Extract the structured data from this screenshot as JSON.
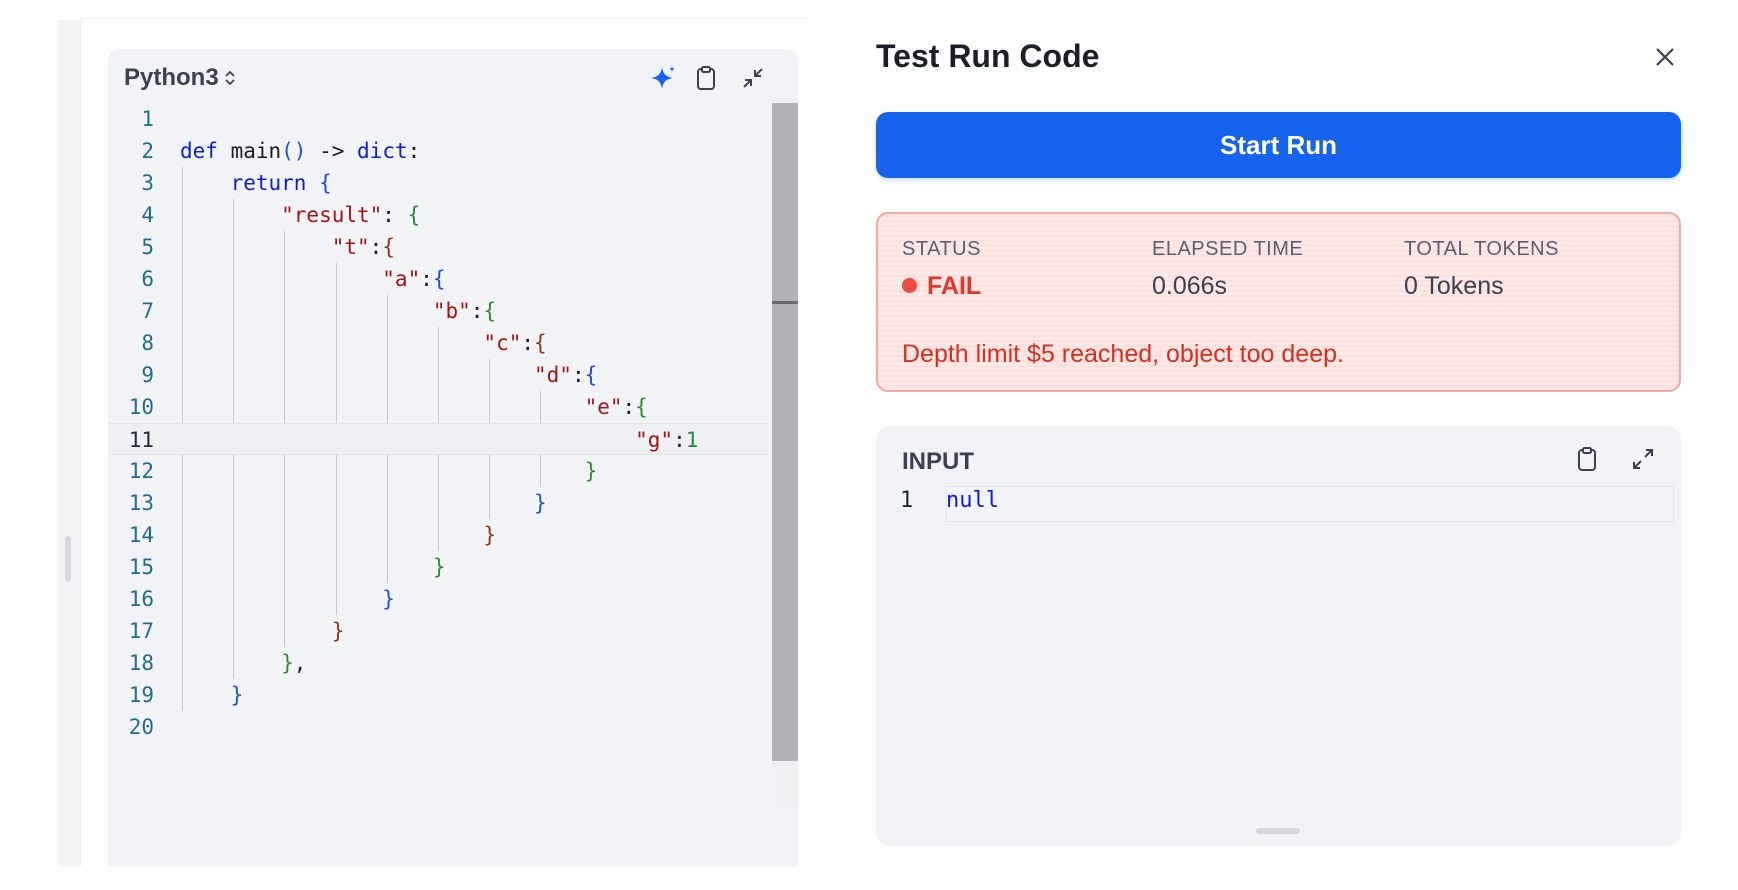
{
  "editor": {
    "language": "Python3",
    "icons": {
      "ai": "sparkle-icon",
      "copy": "clipboard-icon",
      "collapse": "collapse-icon"
    },
    "active_line": 11,
    "lines": [
      {
        "n": "1",
        "tokens": []
      },
      {
        "n": "2",
        "tokens": [
          {
            "t": "def",
            "c": "k"
          },
          {
            "t": " main",
            "c": "f"
          },
          {
            "t": "()",
            "c": "b1"
          },
          {
            "t": " -> ",
            "c": "p"
          },
          {
            "t": "dict",
            "c": "k"
          },
          {
            "t": ":",
            "c": "p"
          }
        ]
      },
      {
        "n": "3",
        "tokens": [
          {
            "t": "    return",
            "c": "k"
          },
          {
            "t": " ",
            "c": "p"
          },
          {
            "t": "{",
            "c": "b1"
          }
        ]
      },
      {
        "n": "4",
        "tokens": [
          {
            "t": "        \"result\"",
            "c": "s"
          },
          {
            "t": ": ",
            "c": "p"
          },
          {
            "t": "{",
            "c": "b2"
          }
        ]
      },
      {
        "n": "5",
        "tokens": [
          {
            "t": "            \"t\"",
            "c": "s"
          },
          {
            "t": ":",
            "c": "p"
          },
          {
            "t": "{",
            "c": "b3"
          }
        ]
      },
      {
        "n": "6",
        "tokens": [
          {
            "t": "                \"a\"",
            "c": "s"
          },
          {
            "t": ":",
            "c": "p"
          },
          {
            "t": "{",
            "c": "b1"
          }
        ]
      },
      {
        "n": "7",
        "tokens": [
          {
            "t": "                    \"b\"",
            "c": "s"
          },
          {
            "t": ":",
            "c": "p"
          },
          {
            "t": "{",
            "c": "b2"
          }
        ]
      },
      {
        "n": "8",
        "tokens": [
          {
            "t": "                        \"c\"",
            "c": "s"
          },
          {
            "t": ":",
            "c": "p"
          },
          {
            "t": "{",
            "c": "b3"
          }
        ]
      },
      {
        "n": "9",
        "tokens": [
          {
            "t": "                            \"d\"",
            "c": "s"
          },
          {
            "t": ":",
            "c": "p"
          },
          {
            "t": "{",
            "c": "b1"
          }
        ]
      },
      {
        "n": "10",
        "tokens": [
          {
            "t": "                                \"e\"",
            "c": "s"
          },
          {
            "t": ":",
            "c": "p"
          },
          {
            "t": "{",
            "c": "b2"
          }
        ]
      },
      {
        "n": "11",
        "tokens": [
          {
            "t": "                                    \"g\"",
            "c": "s"
          },
          {
            "t": ":",
            "c": "p"
          },
          {
            "t": "1",
            "c": "n"
          }
        ]
      },
      {
        "n": "12",
        "tokens": [
          {
            "t": "                                }",
            "c": "b2"
          }
        ]
      },
      {
        "n": "13",
        "tokens": [
          {
            "t": "                            }",
            "c": "b1"
          }
        ]
      },
      {
        "n": "14",
        "tokens": [
          {
            "t": "                        }",
            "c": "b3"
          }
        ]
      },
      {
        "n": "15",
        "tokens": [
          {
            "t": "                    }",
            "c": "b2"
          }
        ]
      },
      {
        "n": "16",
        "tokens": [
          {
            "t": "                }",
            "c": "b1"
          }
        ]
      },
      {
        "n": "17",
        "tokens": [
          {
            "t": "            }",
            "c": "b3"
          }
        ]
      },
      {
        "n": "18",
        "tokens": [
          {
            "t": "        }",
            "c": "b2"
          },
          {
            "t": ",",
            "c": "p"
          }
        ]
      },
      {
        "n": "19",
        "tokens": [
          {
            "t": "    }",
            "c": "b1"
          }
        ]
      },
      {
        "n": "20",
        "tokens": []
      }
    ]
  },
  "panel": {
    "title": "Test Run Code",
    "close_icon": "close-icon",
    "start_label": "Start Run",
    "result": {
      "status_label": "STATUS",
      "status_value": "FAIL",
      "elapsed_label": "ELAPSED TIME",
      "elapsed_value": "0.066s",
      "tokens_label": "TOTAL TOKENS",
      "tokens_value": "0 Tokens",
      "error": "Depth limit $5 reached, object too deep.",
      "colors": {
        "fail": "#e0372b",
        "card_border": "#f3a8a2"
      }
    },
    "input": {
      "title": "INPUT",
      "line_number": "1",
      "value": "null",
      "icons": {
        "copy": "clipboard-icon",
        "expand": "expand-icon"
      }
    }
  },
  "colors": {
    "accent": "#1563ef"
  }
}
